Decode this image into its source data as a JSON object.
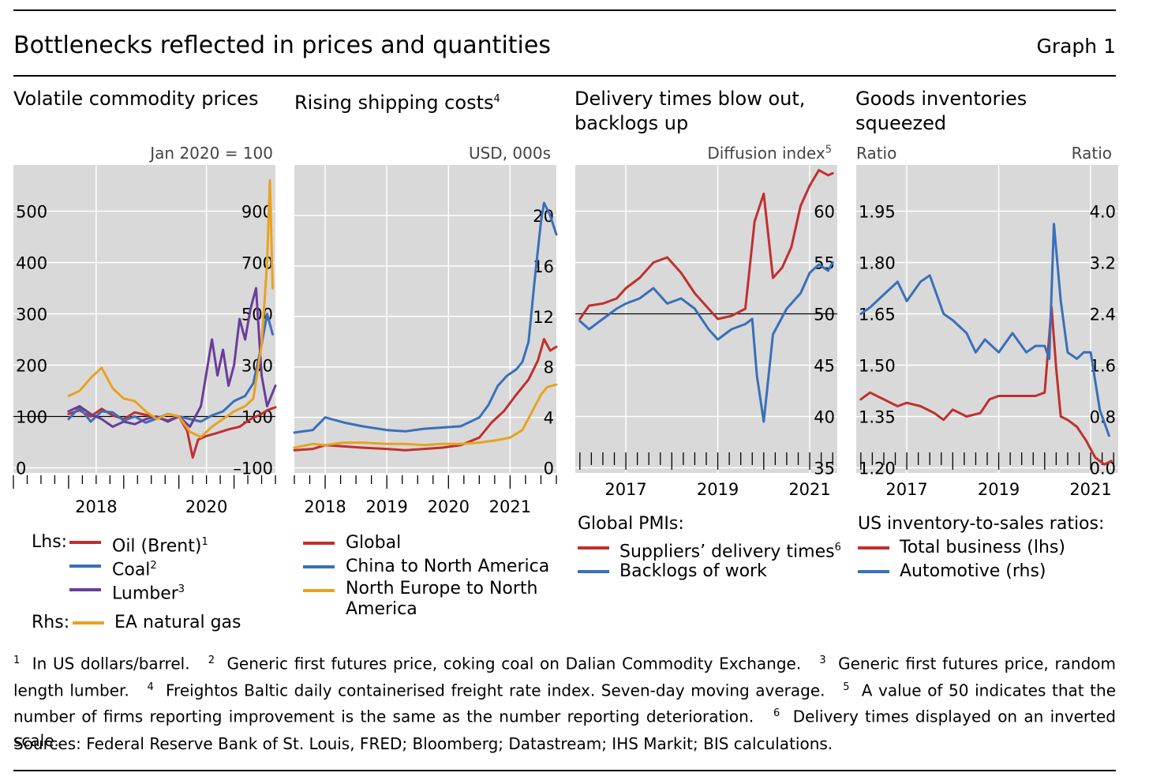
{
  "header": {
    "title": "Bottlenecks reflected in prices and quantities",
    "graph_no": "Graph 1"
  },
  "panels": [
    {
      "title": "Volatile commodity prices",
      "sup": "",
      "unit": "Jan 2020 = 100",
      "unit_sup": ""
    },
    {
      "title": "Rising shipping costs",
      "sup": "4",
      "unit": "USD, 000s",
      "unit_sup": ""
    },
    {
      "title": "Delivery times blow out, backlogs up",
      "sup": "",
      "unit": "Diffusion index",
      "unit_sup": "5"
    },
    {
      "title": "Goods inventories squeezed",
      "sup": "",
      "unit_left": "Ratio",
      "unit_right": "Ratio"
    }
  ],
  "legends": {
    "p1": {
      "lhs_label": "Lhs:",
      "rhs_label": "Rhs:",
      "items": [
        {
          "label": "Oil (Brent)",
          "sup": "1",
          "color": "#c0302f"
        },
        {
          "label": "Coal",
          "sup": "2",
          "color": "#3a6fba"
        },
        {
          "label": "Lumber",
          "sup": "3",
          "color": "#6a3d9a"
        },
        {
          "label": "EA natural gas",
          "sup": "",
          "color": "#e8a21f"
        }
      ]
    },
    "p2": {
      "items": [
        {
          "label": "Global",
          "color": "#c0302f"
        },
        {
          "label": "China to North America",
          "color": "#3a6fba"
        },
        {
          "label": "North Europe to North",
          "label2": "America",
          "color": "#e8a21f"
        }
      ]
    },
    "p3": {
      "heading": "Global PMIs:",
      "items": [
        {
          "label": "Suppliers’ delivery times",
          "sup": "6",
          "color": "#c0302f"
        },
        {
          "label": "Backlogs of work",
          "sup": "",
          "color": "#3a6fba"
        }
      ]
    },
    "p4": {
      "heading": "US inventory-to-sales ratios:",
      "items": [
        {
          "label": "Total business (lhs)",
          "color": "#c0302f"
        },
        {
          "label": "Automotive (rhs)",
          "color": "#3a6fba"
        }
      ]
    }
  },
  "footnotes": {
    "n1": "In US dollars/barrel.",
    "n2": "Generic first futures price, coking coal on Dalian Commodity Exchange.",
    "n3": "Generic first futures price, random length lumber.",
    "n4": "Freightos Baltic daily containerised freight rate index. Seven-day moving average.",
    "n5": "A value of 50 indicates that the number of firms reporting improvement is the same as the number reporting deterioration.",
    "n6": "Delivery times displayed on an inverted scale."
  },
  "sources": "Sources: Federal Reserve Bank of St. Louis, FRED; Bloomberg; Datastream; IHS Markit; BIS calculations.",
  "chart_data": [
    {
      "type": "line",
      "title": "Volatile commodity prices",
      "unit": "Jan 2020 = 100",
      "xlim": [
        2017.0,
        2021.75
      ],
      "x_ticks": [
        "2018",
        "2020"
      ],
      "x_tick_values": [
        2018.5,
        2020.5
      ],
      "y_left": {
        "ticks": [
          "0",
          "100",
          "200",
          "300",
          "400",
          "500"
        ],
        "lim": [
          -10,
          590
        ]
      },
      "y_right": {
        "ticks": [
          "–100",
          "100",
          "300",
          "500",
          "700",
          "900"
        ],
        "lim": [
          -120,
          1080
        ]
      },
      "reference_line": 100,
      "series": [
        {
          "name": "Oil (Brent)",
          "axis": "left",
          "color": "#c0302f",
          "x": [
            2018.0,
            2018.2,
            2018.4,
            2018.6,
            2018.8,
            2019.0,
            2019.2,
            2019.4,
            2019.6,
            2019.8,
            2020.0,
            2020.15,
            2020.25,
            2020.35,
            2020.5,
            2020.7,
            2020.9,
            2021.1,
            2021.3,
            2021.5,
            2021.6,
            2021.75
          ],
          "y": [
            105,
            112,
            100,
            115,
            102,
            95,
            108,
            103,
            98,
            92,
            100,
            72,
            20,
            55,
            62,
            68,
            75,
            80,
            95,
            105,
            112,
            118
          ]
        },
        {
          "name": "Coal",
          "axis": "left",
          "color": "#3a6fba",
          "x": [
            2018.0,
            2018.2,
            2018.4,
            2018.6,
            2018.8,
            2019.0,
            2019.2,
            2019.4,
            2019.6,
            2019.8,
            2020.0,
            2020.2,
            2020.4,
            2020.6,
            2020.8,
            2021.0,
            2021.2,
            2021.35,
            2021.5,
            2021.6,
            2021.7
          ],
          "y": [
            95,
            118,
            90,
            110,
            108,
            92,
            100,
            88,
            96,
            105,
            100,
            95,
            90,
            102,
            110,
            130,
            140,
            165,
            240,
            300,
            260
          ]
        },
        {
          "name": "Lumber",
          "axis": "left",
          "color": "#6a3d9a",
          "x": [
            2018.0,
            2018.2,
            2018.4,
            2018.6,
            2018.8,
            2019.0,
            2019.2,
            2019.4,
            2019.6,
            2019.8,
            2020.0,
            2020.2,
            2020.4,
            2020.6,
            2020.7,
            2020.8,
            2020.9,
            2021.0,
            2021.1,
            2021.2,
            2021.3,
            2021.4,
            2021.5,
            2021.6,
            2021.75
          ],
          "y": [
            110,
            120,
            105,
            95,
            80,
            90,
            85,
            95,
            100,
            90,
            100,
            80,
            120,
            250,
            180,
            230,
            160,
            200,
            290,
            250,
            310,
            350,
            180,
            120,
            160
          ]
        },
        {
          "name": "EA natural gas",
          "axis": "right",
          "color": "#e8a21f",
          "x": [
            2018.0,
            2018.2,
            2018.4,
            2018.6,
            2018.8,
            2019.0,
            2019.2,
            2019.4,
            2019.6,
            2019.8,
            2020.0,
            2020.2,
            2020.4,
            2020.6,
            2020.8,
            2021.0,
            2021.2,
            2021.35,
            2021.5,
            2021.6,
            2021.65,
            2021.7
          ],
          "y": [
            180,
            200,
            250,
            290,
            210,
            170,
            160,
            120,
            90,
            110,
            100,
            40,
            20,
            60,
            90,
            120,
            140,
            170,
            380,
            700,
            1020,
            600
          ]
        }
      ]
    },
    {
      "type": "line",
      "title": "Rising shipping costs",
      "unit": "USD, 000s",
      "xlim": [
        2017.5,
        2021.75
      ],
      "x_ticks": [
        "2018",
        "2019",
        "2020",
        "2021"
      ],
      "x_tick_values": [
        2018.0,
        2019.0,
        2020.0,
        2021.0
      ],
      "y_right": {
        "ticks": [
          "0",
          "4",
          "8",
          "12",
          "16",
          "20"
        ],
        "lim": [
          -0.4,
          24
        ]
      },
      "series": [
        {
          "name": "Global",
          "color": "#c0302f",
          "x": [
            2017.5,
            2017.8,
            2018.0,
            2018.3,
            2018.6,
            2019.0,
            2019.3,
            2019.6,
            2019.9,
            2020.2,
            2020.5,
            2020.7,
            2020.9,
            2021.1,
            2021.3,
            2021.45,
            2021.55,
            2021.65,
            2021.75
          ],
          "y": [
            1.4,
            1.5,
            1.8,
            1.7,
            1.6,
            1.5,
            1.4,
            1.5,
            1.6,
            1.8,
            2.4,
            3.6,
            4.5,
            5.8,
            7.0,
            8.5,
            10.2,
            9.3,
            9.6
          ]
        },
        {
          "name": "China to North America",
          "color": "#3a6fba",
          "x": [
            2017.5,
            2017.8,
            2018.0,
            2018.3,
            2018.6,
            2019.0,
            2019.3,
            2019.6,
            2019.9,
            2020.2,
            2020.5,
            2020.65,
            2020.8,
            2020.95,
            2021.1,
            2021.2,
            2021.3,
            2021.4,
            2021.5,
            2021.55,
            2021.65,
            2021.75
          ],
          "y": [
            2.8,
            3.0,
            4.0,
            3.6,
            3.3,
            3.0,
            2.9,
            3.1,
            3.2,
            3.3,
            4.0,
            5.0,
            6.5,
            7.3,
            7.8,
            8.4,
            10.0,
            15.0,
            19.5,
            21.0,
            20.0,
            18.5
          ]
        },
        {
          "name": "North Europe to North America",
          "color": "#e8a21f",
          "x": [
            2017.5,
            2017.8,
            2018.0,
            2018.3,
            2018.6,
            2019.0,
            2019.3,
            2019.6,
            2019.9,
            2020.2,
            2020.5,
            2020.8,
            2021.0,
            2021.2,
            2021.35,
            2021.5,
            2021.6,
            2021.75
          ],
          "y": [
            1.6,
            1.9,
            1.8,
            2.0,
            2.0,
            1.9,
            1.9,
            1.8,
            1.9,
            1.9,
            2.0,
            2.2,
            2.4,
            3.0,
            4.4,
            5.8,
            6.4,
            6.6
          ]
        }
      ]
    },
    {
      "type": "line",
      "title": "Delivery times blow out, backlogs up",
      "unit": "Diffusion index",
      "xlim": [
        2015.9,
        2021.6
      ],
      "x_ticks": [
        "2017",
        "2019",
        "2021"
      ],
      "x_tick_values": [
        2017.0,
        2019.0,
        2021.0
      ],
      "y_right": {
        "ticks": [
          "35",
          "40",
          "45",
          "50",
          "55",
          "60"
        ],
        "lim": [
          34.5,
          64.5
        ]
      },
      "reference_line": 50,
      "series": [
        {
          "name": "Suppliers’ delivery times",
          "color": "#c0302f",
          "x": [
            2016.0,
            2016.2,
            2016.5,
            2016.8,
            2017.0,
            2017.3,
            2017.6,
            2017.9,
            2018.2,
            2018.5,
            2018.8,
            2019.0,
            2019.3,
            2019.6,
            2019.8,
            2020.0,
            2020.2,
            2020.4,
            2020.6,
            2020.8,
            2021.0,
            2021.2,
            2021.4,
            2021.5
          ],
          "y": [
            49.5,
            50.8,
            51.0,
            51.5,
            52.5,
            53.5,
            55.0,
            55.5,
            54.0,
            52.0,
            50.5,
            49.5,
            49.8,
            50.5,
            59.0,
            61.7,
            53.5,
            54.5,
            56.5,
            60.5,
            62.5,
            64.0,
            63.5,
            63.7
          ]
        },
        {
          "name": "Backlogs of work",
          "color": "#3a6fba",
          "x": [
            2016.0,
            2016.2,
            2016.5,
            2016.8,
            2017.0,
            2017.3,
            2017.6,
            2017.9,
            2018.2,
            2018.5,
            2018.8,
            2019.0,
            2019.3,
            2019.6,
            2019.75,
            2019.85,
            2020.0,
            2020.2,
            2020.5,
            2020.8,
            2021.0,
            2021.2,
            2021.4,
            2021.5
          ],
          "y": [
            49.3,
            48.5,
            49.5,
            50.5,
            51.0,
            51.5,
            52.5,
            51.0,
            51.5,
            50.5,
            48.5,
            47.5,
            48.5,
            49.0,
            49.5,
            44.0,
            39.5,
            48.0,
            50.5,
            52.0,
            54.0,
            54.8,
            54.2,
            55.0
          ]
        }
      ]
    },
    {
      "type": "line",
      "title": "Goods inventories squeezed",
      "xlim": [
        2015.9,
        2021.6
      ],
      "x_ticks": [
        "2017",
        "2019",
        "2021"
      ],
      "x_tick_values": [
        2017.0,
        2019.0,
        2021.0
      ],
      "y_left": {
        "unit": "Ratio",
        "ticks": [
          "1.20",
          "1.35",
          "1.50",
          "1.65",
          "1.80",
          "1.95"
        ],
        "lim": [
          1.185,
          2.085
        ]
      },
      "y_right": {
        "unit": "Ratio",
        "ticks": [
          "0.0",
          "0.8",
          "1.6",
          "2.4",
          "3.2",
          "4.0"
        ],
        "lim": [
          -0.08,
          4.72
        ]
      },
      "series": [
        {
          "name": "Total business (lhs)",
          "axis": "left",
          "color": "#c0302f",
          "x": [
            2016.0,
            2016.2,
            2016.5,
            2016.8,
            2017.0,
            2017.3,
            2017.6,
            2017.8,
            2018.0,
            2018.3,
            2018.6,
            2018.8,
            2019.0,
            2019.3,
            2019.6,
            2019.8,
            2020.0,
            2020.15,
            2020.25,
            2020.35,
            2020.5,
            2020.7,
            2020.9,
            2021.1,
            2021.3,
            2021.45
          ],
          "y": [
            1.4,
            1.42,
            1.4,
            1.38,
            1.39,
            1.38,
            1.36,
            1.34,
            1.37,
            1.35,
            1.36,
            1.4,
            1.41,
            1.41,
            1.41,
            1.41,
            1.42,
            1.67,
            1.49,
            1.35,
            1.34,
            1.32,
            1.28,
            1.23,
            1.21,
            1.22
          ]
        },
        {
          "name": "Automotive (rhs)",
          "axis": "right",
          "color": "#3a6fba",
          "x": [
            2016.0,
            2016.2,
            2016.5,
            2016.8,
            2017.0,
            2017.3,
            2017.5,
            2017.8,
            2018.0,
            2018.3,
            2018.5,
            2018.7,
            2019.0,
            2019.3,
            2019.6,
            2019.8,
            2020.0,
            2020.1,
            2020.2,
            2020.35,
            2020.5,
            2020.7,
            2020.85,
            2021.0,
            2021.2,
            2021.4
          ],
          "y": [
            2.4,
            2.5,
            2.7,
            2.9,
            2.6,
            2.9,
            3.0,
            2.4,
            2.3,
            2.1,
            1.8,
            2.0,
            1.8,
            2.1,
            1.8,
            1.9,
            1.9,
            1.7,
            3.8,
            2.6,
            1.8,
            1.7,
            1.8,
            1.8,
            0.9,
            0.5
          ]
        }
      ]
    }
  ]
}
